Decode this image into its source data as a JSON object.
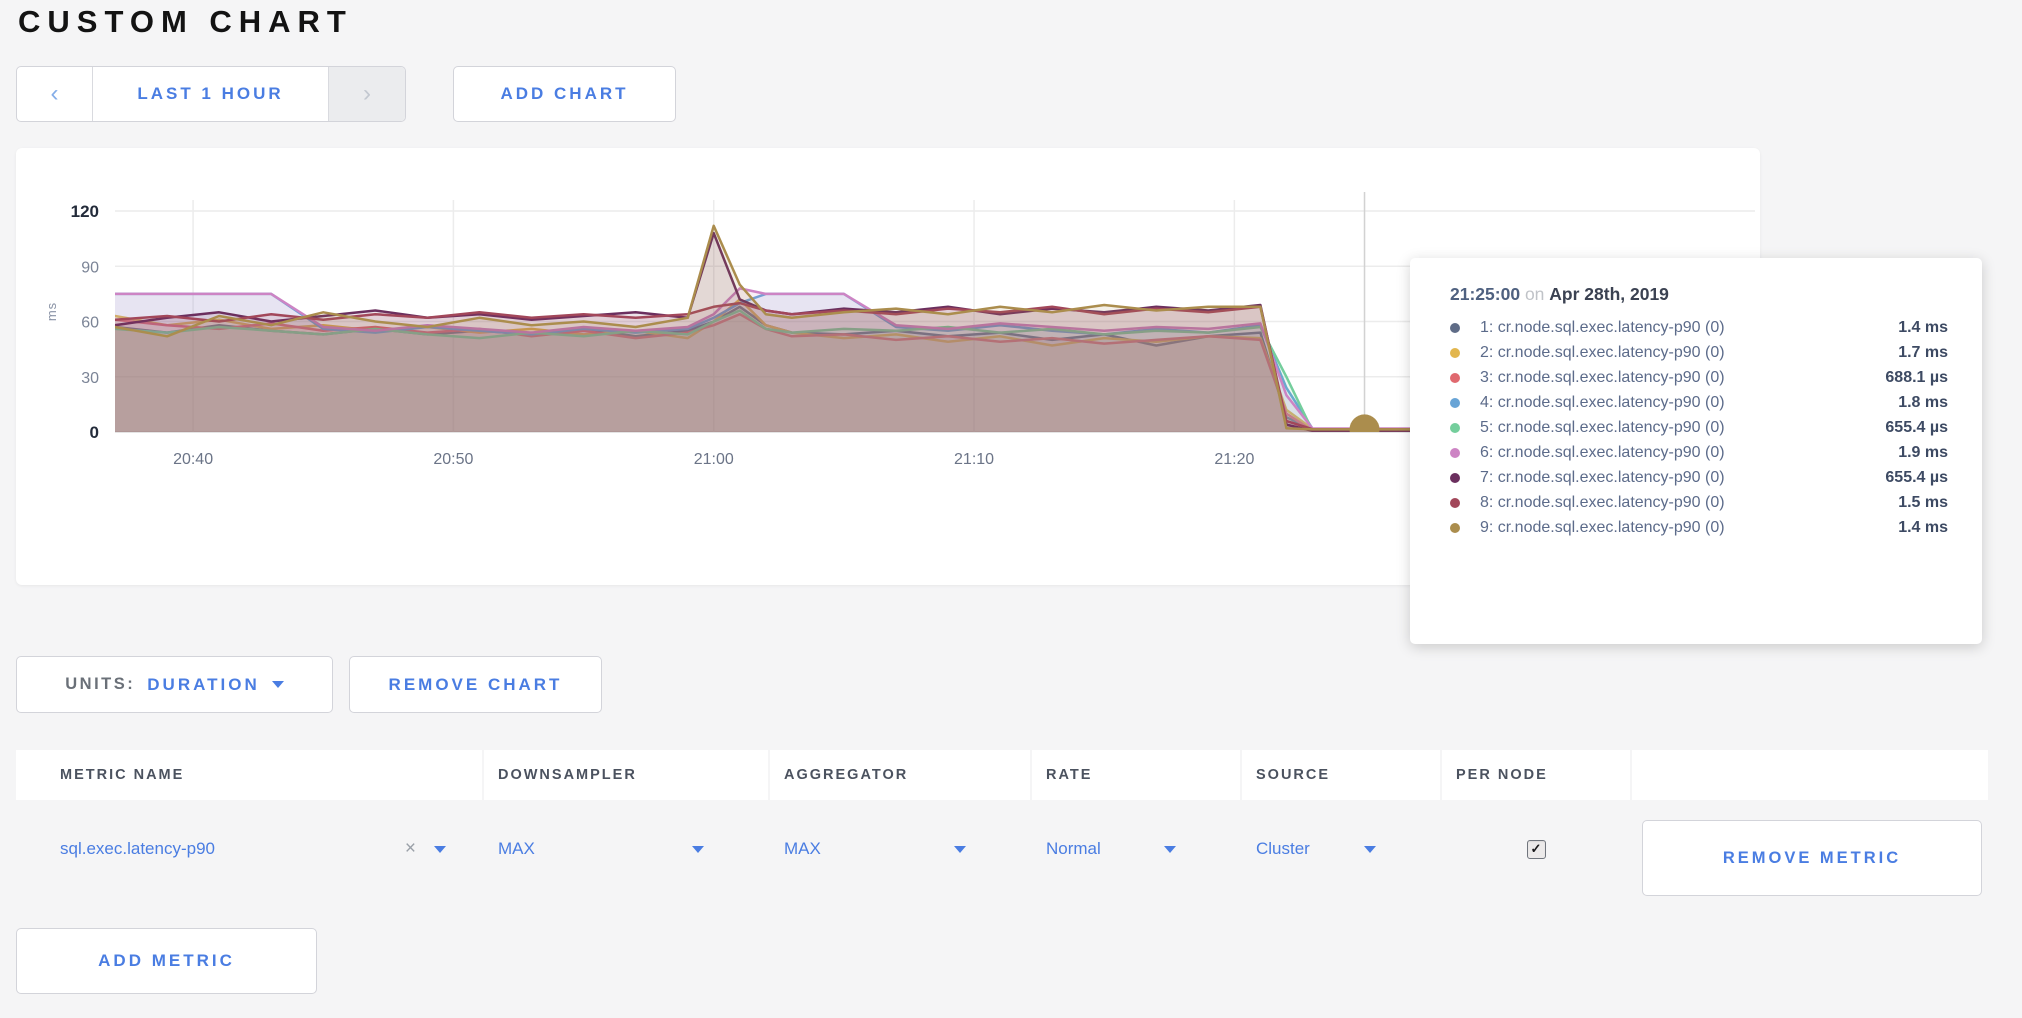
{
  "page": {
    "title": "CUSTOM CHART"
  },
  "toolbar": {
    "time_range": {
      "prev_icon": "‹",
      "label": "LAST 1 HOUR",
      "next_icon": "›"
    },
    "add_chart_label": "ADD CHART"
  },
  "chart_controls": {
    "units_label": "UNITS:",
    "units_value": "DURATION",
    "remove_chart_label": "REMOVE CHART"
  },
  "tooltip": {
    "time": "21:25:00",
    "conjunction": "on",
    "date": "Apr 28th, 2019",
    "rows": [
      {
        "label": "1: cr.node.sql.exec.latency-p90 (0)",
        "value": "1.4 ms"
      },
      {
        "label": "2: cr.node.sql.exec.latency-p90 (0)",
        "value": "1.7 ms"
      },
      {
        "label": "3: cr.node.sql.exec.latency-p90 (0)",
        "value": "688.1 µs"
      },
      {
        "label": "4: cr.node.sql.exec.latency-p90 (0)",
        "value": "1.8 ms"
      },
      {
        "label": "5: cr.node.sql.exec.latency-p90 (0)",
        "value": "655.4 µs"
      },
      {
        "label": "6: cr.node.sql.exec.latency-p90 (0)",
        "value": "1.9 ms"
      },
      {
        "label": "7: cr.node.sql.exec.latency-p90 (0)",
        "value": "655.4 µs"
      },
      {
        "label": "8: cr.node.sql.exec.latency-p90 (0)",
        "value": "1.5 ms"
      },
      {
        "label": "9: cr.node.sql.exec.latency-p90 (0)",
        "value": "1.4 ms"
      }
    ]
  },
  "chart_data": {
    "type": "area",
    "title": "",
    "xlabel": "",
    "ylabel": "ms",
    "ylim": [
      0,
      126
    ],
    "yticks": [
      0,
      30,
      60,
      90,
      120
    ],
    "x_range_minutes": [
      0,
      63
    ],
    "xticks": [
      {
        "t": 3,
        "label": "20:40"
      },
      {
        "t": 13,
        "label": "20:50"
      },
      {
        "t": 23,
        "label": "21:00"
      },
      {
        "t": 33,
        "label": "21:10"
      },
      {
        "t": 43,
        "label": "21:20"
      }
    ],
    "crosshair": {
      "t": 48,
      "time": "21:25:00"
    },
    "hover_point": {
      "series_index": 8,
      "t": 48,
      "value": 1.4
    },
    "t_grid": [
      0,
      2,
      4,
      6,
      8,
      10,
      12,
      14,
      16,
      18,
      20,
      22,
      23,
      24,
      25,
      26,
      28,
      30,
      32,
      34,
      36,
      38,
      40,
      42,
      44,
      45,
      46,
      47,
      48,
      50,
      53
    ],
    "series": [
      {
        "name": "1: cr.node.sql.exec.latency-p90 (0)",
        "color": "#5f6c87",
        "values": [
          57,
          54,
          58,
          55,
          53,
          56,
          53,
          55,
          53,
          56,
          52,
          55,
          60,
          68,
          58,
          54,
          53,
          55,
          52,
          54,
          50,
          53,
          47,
          52,
          54,
          8,
          1.4,
          1.4,
          1.4,
          1.4,
          1.4
        ]
      },
      {
        "name": "2: cr.node.sql.exec.latency-p90 (0)",
        "color": "#e2b64e",
        "values": [
          63,
          58,
          61,
          56,
          58,
          55,
          57,
          54,
          56,
          53,
          55,
          51,
          60,
          72,
          58,
          54,
          51,
          53,
          49,
          52,
          47,
          51,
          49,
          52,
          51,
          12,
          1.7,
          1.7,
          1.7,
          1.7,
          1.7
        ]
      },
      {
        "name": "3: cr.node.sql.exec.latency-p90 (0)",
        "color": "#e0696f",
        "values": [
          61,
          58,
          56,
          59,
          55,
          57,
          54,
          56,
          52,
          55,
          51,
          54,
          58,
          64,
          56,
          52,
          53,
          50,
          52,
          49,
          51,
          48,
          50,
          52,
          50,
          10,
          0.69,
          0.69,
          0.69,
          0.69,
          0.69
        ]
      },
      {
        "name": "4: cr.node.sql.exec.latency-p90 (0)",
        "color": "#68a4d6",
        "values": [
          75,
          75,
          75,
          75,
          56,
          54,
          57,
          55,
          53,
          56,
          54,
          56,
          62,
          70,
          75,
          75,
          75,
          57,
          55,
          58,
          55,
          53,
          56,
          54,
          58,
          24,
          1.8,
          1.8,
          1.8,
          1.8,
          1.8
        ]
      },
      {
        "name": "5: cr.node.sql.exec.latency-p90 (0)",
        "color": "#74ce9c",
        "values": [
          56,
          54,
          57,
          55,
          53,
          56,
          53,
          51,
          54,
          52,
          55,
          53,
          60,
          66,
          56,
          54,
          56,
          55,
          57,
          54,
          56,
          53,
          55,
          54,
          57,
          30,
          0.66,
          0.66,
          0.66,
          0.66,
          0.66
        ]
      },
      {
        "name": "6: cr.node.sql.exec.latency-p90 (0)",
        "color": "#cd84c4",
        "values": [
          75,
          75,
          75,
          75,
          57,
          55,
          58,
          56,
          54,
          57,
          55,
          57,
          64,
          78,
          75,
          75,
          75,
          58,
          56,
          59,
          57,
          55,
          57,
          56,
          59,
          20,
          1.9,
          1.9,
          1.9,
          1.9,
          1.9
        ]
      },
      {
        "name": "7: cr.node.sql.exec.latency-p90 (0)",
        "color": "#6b2f5e",
        "values": [
          58,
          62,
          65,
          60,
          63,
          66,
          62,
          64,
          61,
          63,
          65,
          62,
          108,
          72,
          66,
          64,
          67,
          65,
          68,
          64,
          67,
          65,
          68,
          66,
          69,
          4,
          0.66,
          0.66,
          0.66,
          0.66,
          0.66
        ]
      },
      {
        "name": "8: cr.node.sql.exec.latency-p90 (0)",
        "color": "#a2475a",
        "values": [
          61,
          63,
          60,
          64,
          61,
          64,
          62,
          65,
          62,
          64,
          62,
          64,
          68,
          70,
          66,
          64,
          66,
          64,
          67,
          65,
          68,
          64,
          67,
          65,
          68,
          6,
          1.5,
          1.5,
          1.5,
          1.5,
          1.5
        ]
      },
      {
        "name": "9: cr.node.sql.exec.latency-p90 (0)",
        "color": "#ab8d4d",
        "values": [
          57,
          52,
          63,
          58,
          65,
          60,
          57,
          62,
          58,
          60,
          57,
          62,
          112,
          80,
          64,
          62,
          65,
          67,
          64,
          68,
          65,
          69,
          66,
          68,
          68,
          2,
          1.4,
          1.4,
          1.4,
          1.4,
          1.4
        ]
      }
    ]
  },
  "metrics_table": {
    "headers": [
      "METRIC NAME",
      "DOWNSAMPLER",
      "AGGREGATOR",
      "RATE",
      "SOURCE",
      "PER NODE",
      ""
    ],
    "row": {
      "metric_name": "sql.exec.latency-p90",
      "close_icon": "×",
      "downsampler": "MAX",
      "aggregator": "MAX",
      "rate": "Normal",
      "source": "Cluster",
      "per_node_checked": true,
      "per_node_check_glyph": "✓",
      "remove_metric_label": "REMOVE METRIC"
    }
  },
  "add_metric_label": "ADD METRIC"
}
